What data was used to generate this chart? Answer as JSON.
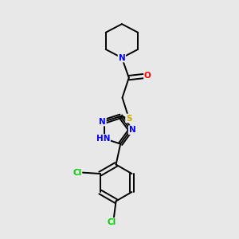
{
  "background_color": "#e8e8e8",
  "bond_color": "#000000",
  "n_color": "#0000ff",
  "o_color": "#ff0000",
  "s_color": "#ccaa00",
  "cl_color": "#00cc00",
  "line_width": 1.4,
  "font_size_atom": 7.5,
  "fig_size": [
    3.0,
    3.0
  ],
  "dpi": 100,
  "xlim": [
    0,
    10
  ],
  "ylim": [
    0,
    10
  ]
}
